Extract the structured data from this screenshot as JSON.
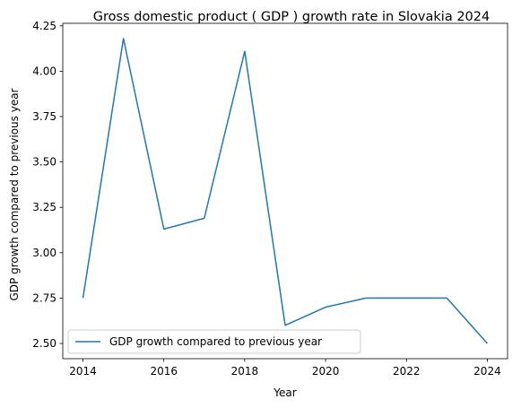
{
  "chart_data": {
    "type": "line",
    "title": "Gross domestic product ( GDP ) growth rate in Slovakia 2024",
    "xlabel": "Year",
    "ylabel": "GDP growth compared to previous year",
    "x": [
      2014,
      2015,
      2016,
      2017,
      2018,
      2019,
      2020,
      2021,
      2022,
      2023,
      2024
    ],
    "series": [
      {
        "name": "GDP growth compared to previous year",
        "values": [
          2.75,
          4.18,
          3.13,
          3.19,
          4.11,
          2.6,
          2.7,
          2.75,
          2.75,
          2.75,
          2.5
        ],
        "color": "#1f77b4"
      }
    ],
    "xticks": [
      2014,
      2016,
      2018,
      2020,
      2022,
      2024
    ],
    "yticks": [
      2.5,
      2.75,
      3.0,
      3.25,
      3.5,
      3.75,
      4.0,
      4.25
    ],
    "ytick_labels": [
      "2.50",
      "2.75",
      "3.00",
      "3.25",
      "3.50",
      "3.75",
      "4.00",
      "4.25"
    ],
    "xlim": [
      2013.5,
      2024.5
    ],
    "ylim": [
      2.416,
      4.264
    ],
    "grid": false,
    "legend_position": "lower-left"
  }
}
